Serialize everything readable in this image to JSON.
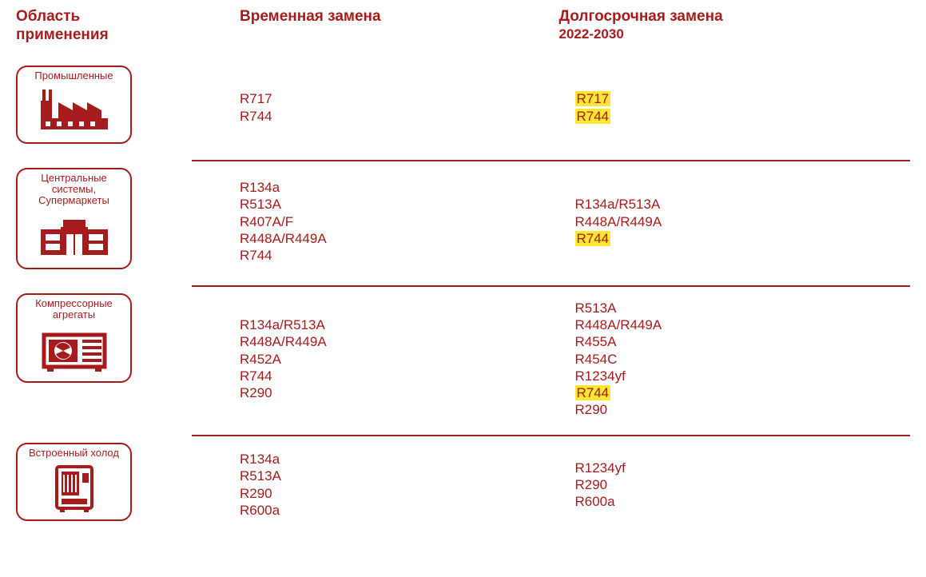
{
  "colors": {
    "primary": "#a61c1c",
    "highlight_bg": "#ffe733",
    "background": "#ffffff"
  },
  "typography": {
    "header_fontsize_pt": 15,
    "subheader_fontsize_pt": 13,
    "item_fontsize_pt": 13,
    "catlabel_fontsize_pt": 10
  },
  "headers": {
    "area": "Область применения",
    "temporary": "Временная замена",
    "longterm": "Долгосрочная замена",
    "longterm_sub": "2022-2030"
  },
  "rows": [
    {
      "id": "industrial",
      "label": "Промышленные",
      "icon": "factory",
      "temporary": [
        {
          "text": "R717",
          "highlight": false
        },
        {
          "text": "R744",
          "highlight": false
        }
      ],
      "longterm": [
        {
          "text": "R717",
          "highlight": true
        },
        {
          "text": "R744",
          "highlight": true
        }
      ],
      "divider_after": true
    },
    {
      "id": "supermarket",
      "label": "Центральные системы, Супермаркеты",
      "icon": "supermarket",
      "temporary": [
        {
          "text": "R134a",
          "highlight": false
        },
        {
          "text": "R513A",
          "highlight": false
        },
        {
          "text": "R407A/F",
          "highlight": false
        },
        {
          "text": "R448A/R449A",
          "highlight": false
        },
        {
          "text": "R744",
          "highlight": false
        }
      ],
      "longterm": [
        {
          "text": "R134a/R513A",
          "highlight": false
        },
        {
          "text": "R448A/R449A",
          "highlight": false
        },
        {
          "text": "R744",
          "highlight": true
        }
      ],
      "divider_after": true
    },
    {
      "id": "condensing",
      "label": "Компрессорные агрегаты",
      "icon": "condensing",
      "temporary": [
        {
          "text": "R134a/R513A",
          "highlight": false
        },
        {
          "text": "R448A/R449A",
          "highlight": false
        },
        {
          "text": "R452A",
          "highlight": false
        },
        {
          "text": "R744",
          "highlight": false
        },
        {
          "text": "R290",
          "highlight": false
        }
      ],
      "longterm": [
        {
          "text": "R513A",
          "highlight": false
        },
        {
          "text": "R448A/R449A",
          "highlight": false
        },
        {
          "text": "R455A",
          "highlight": false
        },
        {
          "text": "R454C",
          "highlight": false
        },
        {
          "text": "R1234yf",
          "highlight": false
        },
        {
          "text": "R744",
          "highlight": true
        },
        {
          "text": "R290",
          "highlight": false
        }
      ],
      "divider_after": true
    },
    {
      "id": "plugin",
      "label": "Встроенный холод",
      "icon": "vending",
      "temporary": [
        {
          "text": "R134a",
          "highlight": false
        },
        {
          "text": "R513A",
          "highlight": false
        },
        {
          "text": "R290",
          "highlight": false
        },
        {
          "text": "R600a",
          "highlight": false
        }
      ],
      "longterm": [
        {
          "text": "R1234yf",
          "highlight": false
        },
        {
          "text": "R290",
          "highlight": false
        },
        {
          "text": "R600a",
          "highlight": false
        }
      ],
      "divider_after": false
    }
  ]
}
